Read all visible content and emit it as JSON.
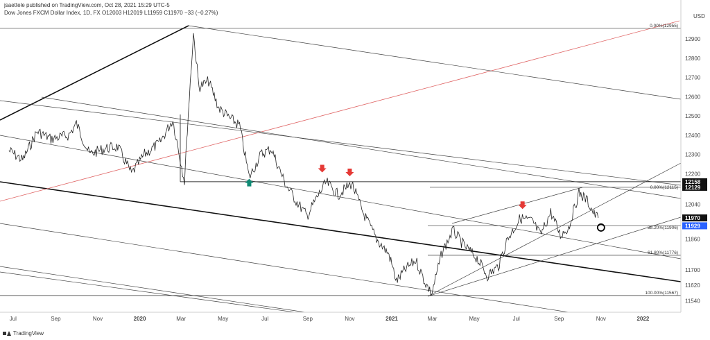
{
  "header": {
    "publisher": "jsaettele published on TradingView.com, Oct 28, 2021 15:29 UTC-5",
    "symbol": "Dow Jones FXCM Dollar Index, 1D, FX",
    "open": "O12003",
    "high": "H12019",
    "low": "L11959",
    "close": "C11970",
    "change": "−33 (−0.27%)"
  },
  "footer": {
    "brand": "TradingView"
  },
  "colors": {
    "price": "#222222",
    "red_arrow": "#e53935",
    "green_arrow": "#0f8a74",
    "price_label": "#111111",
    "current_label": "#2962ff",
    "red_trend": "#e06666"
  },
  "chart_data": {
    "type": "line",
    "currency": "USD",
    "ylim": [
      11480,
      13030
    ],
    "yticks": [
      12900,
      12800,
      12700,
      12600,
      12500,
      12400,
      12300,
      12200,
      12040,
      11860,
      11700,
      11620,
      11540
    ],
    "xticks": [
      {
        "label": "Jul",
        "date": "2019-07-01"
      },
      {
        "label": "Sep",
        "date": "2019-09-01"
      },
      {
        "label": "Nov",
        "date": "2019-11-01"
      },
      {
        "label": "2020",
        "date": "2020-01-01",
        "bold": true
      },
      {
        "label": "Mar",
        "date": "2020-03-01"
      },
      {
        "label": "May",
        "date": "2020-05-01"
      },
      {
        "label": "Jul",
        "date": "2020-07-01"
      },
      {
        "label": "Sep",
        "date": "2020-09-01"
      },
      {
        "label": "Nov",
        "date": "2020-11-01"
      },
      {
        "label": "2021",
        "date": "2021-01-01",
        "bold": true
      },
      {
        "label": "Mar",
        "date": "2021-03-01"
      },
      {
        "label": "May",
        "date": "2021-05-01"
      },
      {
        "label": "Jul",
        "date": "2021-07-01"
      },
      {
        "label": "Sep",
        "date": "2021-09-01"
      },
      {
        "label": "Nov",
        "date": "2021-11-01"
      },
      {
        "label": "2022",
        "date": "2022-01-01",
        "bold": true
      }
    ],
    "series": [
      {
        "points": [
          [
            "2019-06-25",
            12320
          ],
          [
            "2019-07-15",
            12270
          ],
          [
            "2019-08-05",
            12420
          ],
          [
            "2019-08-25",
            12380
          ],
          [
            "2019-09-20",
            12400
          ],
          [
            "2019-10-01",
            12460
          ],
          [
            "2019-10-20",
            12300
          ],
          [
            "2019-11-10",
            12330
          ],
          [
            "2019-11-30",
            12340
          ],
          [
            "2019-12-20",
            12200
          ],
          [
            "2020-01-08",
            12300
          ],
          [
            "2020-01-30",
            12360
          ],
          [
            "2020-02-18",
            12480
          ],
          [
            "2020-03-06",
            12160
          ],
          [
            "2020-03-10",
            12430
          ],
          [
            "2020-03-19",
            12930
          ],
          [
            "2020-03-27",
            12650
          ],
          [
            "2020-04-10",
            12680
          ],
          [
            "2020-04-25",
            12540
          ],
          [
            "2020-05-10",
            12490
          ],
          [
            "2020-05-25",
            12450
          ],
          [
            "2020-06-08",
            12180
          ],
          [
            "2020-06-25",
            12300
          ],
          [
            "2020-07-10",
            12330
          ],
          [
            "2020-07-30",
            12150
          ],
          [
            "2020-08-15",
            12060
          ],
          [
            "2020-08-31",
            11980
          ],
          [
            "2020-09-15",
            12080
          ],
          [
            "2020-09-28",
            12155
          ],
          [
            "2020-10-15",
            12090
          ],
          [
            "2020-11-04",
            12150
          ],
          [
            "2020-11-20",
            12000
          ],
          [
            "2020-12-10",
            11860
          ],
          [
            "2020-12-28",
            11780
          ],
          [
            "2021-01-08",
            11640
          ],
          [
            "2021-01-20",
            11700
          ],
          [
            "2021-02-05",
            11750
          ],
          [
            "2021-02-18",
            11640
          ],
          [
            "2021-02-28",
            11575
          ],
          [
            "2021-03-15",
            11790
          ],
          [
            "2021-03-31",
            11905
          ],
          [
            "2021-04-15",
            11830
          ],
          [
            "2021-05-05",
            11760
          ],
          [
            "2021-05-20",
            11670
          ],
          [
            "2021-06-05",
            11720
          ],
          [
            "2021-06-18",
            11860
          ],
          [
            "2021-07-07",
            11970
          ],
          [
            "2021-07-25",
            11950
          ],
          [
            "2021-08-05",
            11880
          ],
          [
            "2021-08-20",
            12000
          ],
          [
            "2021-09-03",
            11880
          ],
          [
            "2021-09-15",
            11920
          ],
          [
            "2021-09-30",
            12100
          ],
          [
            "2021-10-12",
            12060
          ],
          [
            "2021-10-22",
            11990
          ],
          [
            "2021-10-28",
            11970
          ]
        ]
      }
    ],
    "annotations": [
      {
        "text": "0.00%(12955)",
        "y": 12955
      },
      {
        "text": "0.00%(12115)",
        "y": 12115
      },
      {
        "text": "38.20%(11906)",
        "y": 11906
      },
      {
        "text": "61.80%(11776)",
        "y": 11776
      },
      {
        "text": "100.00%(11567)",
        "y": 11567
      }
    ],
    "price_labels": [
      {
        "text": "12158",
        "y": 12158,
        "style": "dark"
      },
      {
        "text": "12129",
        "y": 12129,
        "style": "dark"
      },
      {
        "text": "11970",
        "y": 11970,
        "style": "dark"
      },
      {
        "text": "11929",
        "y": 11929,
        "style": "blue"
      }
    ],
    "arrows": [
      {
        "date": "2020-06-08",
        "y": 12170,
        "dir": "up",
        "color": "green"
      },
      {
        "date": "2020-09-22",
        "y": 12210,
        "dir": "down",
        "color": "red"
      },
      {
        "date": "2020-11-01",
        "y": 12190,
        "dir": "down",
        "color": "red"
      },
      {
        "date": "2021-07-10",
        "y": 12020,
        "dir": "down",
        "color": "red"
      }
    ],
    "circle": {
      "date": "2021-11-01",
      "y": 11920
    }
  }
}
